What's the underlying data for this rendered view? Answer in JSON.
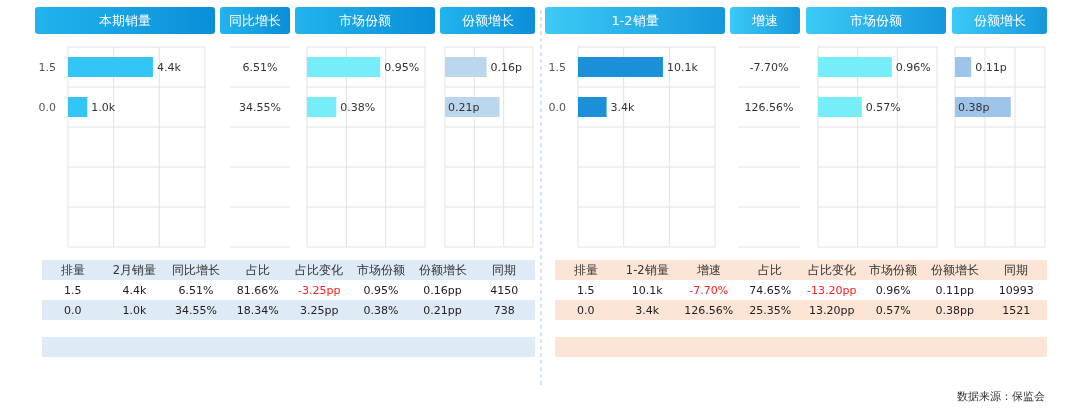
{
  "chart_data": [
    {
      "type": "bar",
      "orientation": "horizontal",
      "title": "本期销量",
      "categories": [
        "1.5",
        "0.0"
      ],
      "values": [
        4.4,
        1.0
      ],
      "value_labels": [
        "4.4k",
        "1.0k"
      ],
      "color": "#33c5f5",
      "grid": true
    },
    {
      "type": "other",
      "title": "同比增长",
      "values": [
        6.51,
        34.55
      ],
      "value_labels": [
        "6.51%",
        "34.55%"
      ]
    },
    {
      "type": "bar",
      "orientation": "horizontal",
      "title": "市场份额",
      "values": [
        0.95,
        0.38
      ],
      "value_labels": [
        "0.95%",
        "0.38%"
      ],
      "color": "#76eef9",
      "grid": true
    },
    {
      "type": "bar",
      "orientation": "horizontal",
      "title": "份额增长",
      "values": [
        0.16,
        0.21
      ],
      "value_labels": [
        "0.16p",
        "0.21p"
      ],
      "color": "#bcd6ee",
      "grid": true
    },
    {
      "type": "other",
      "categories": [
        "排量",
        "2月销量",
        "同比增长",
        "占比",
        "占比变化",
        "市场份额",
        "份额增长",
        "同期"
      ],
      "color": "#deeaf6",
      "series": [
        {
          "values": [
            1.5,
            4.4,
            6.51,
            81.66,
            -3.25,
            0.95,
            0.16,
            4150
          ],
          "value_labels": [
            "1.5",
            "4.4k",
            "6.51%",
            "81.66%",
            "-3.25pp",
            "0.95%",
            "0.16pp",
            "4150"
          ]
        },
        {
          "values": [
            0.0,
            1.0,
            34.55,
            18.34,
            3.25,
            0.38,
            0.21,
            738
          ],
          "value_labels": [
            "0.0",
            "1.0k",
            "34.55%",
            "18.34%",
            "3.25pp",
            "0.38%",
            "0.21pp",
            "738"
          ]
        }
      ]
    },
    {
      "type": "bar",
      "orientation": "horizontal",
      "title": "1-2销量",
      "categories": [
        "1.5",
        "0.0"
      ],
      "values": [
        10.1,
        3.4
      ],
      "value_labels": [
        "10.1k",
        "3.4k"
      ],
      "color": "#1a90d8",
      "grid": true
    },
    {
      "type": "other",
      "title": "增速",
      "values": [
        -7.7,
        126.56
      ],
      "value_labels": [
        "-7.70%",
        "126.56%"
      ]
    },
    {
      "type": "bar",
      "orientation": "horizontal",
      "title": "市场份额",
      "values": [
        0.96,
        0.57
      ],
      "value_labels": [
        "0.96%",
        "0.57%"
      ],
      "color": "#76eef9",
      "grid": true
    },
    {
      "type": "bar",
      "orientation": "horizontal",
      "title": "份额增长",
      "values": [
        0.11,
        0.38
      ],
      "value_labels": [
        "0.11p",
        "0.38p"
      ],
      "color": "#9fc4ea",
      "grid": true
    },
    {
      "type": "other",
      "categories": [
        "排量",
        "1-2销量",
        "增速",
        "占比",
        "占比变化",
        "市场份额",
        "份额增长",
        "同期"
      ],
      "color": "#fce4d6",
      "series": [
        {
          "values": [
            1.5,
            10.1,
            -7.7,
            74.65,
            -13.2,
            0.96,
            0.11,
            10993
          ],
          "value_labels": [
            "1.5",
            "10.1k",
            "-7.70%",
            "74.65%",
            "-13.20pp",
            "0.96%",
            "0.11pp",
            "10993"
          ]
        },
        {
          "values": [
            0.0,
            3.4,
            126.56,
            25.35,
            13.2,
            0.57,
            0.38,
            1521
          ],
          "value_labels": [
            "0.0",
            "3.4k",
            "126.56%",
            "25.35%",
            "13.20pp",
            "0.57%",
            "0.38pp",
            "1521"
          ]
        }
      ],
      "annotations": [
        "数据来源：保监会"
      ]
    }
  ]
}
